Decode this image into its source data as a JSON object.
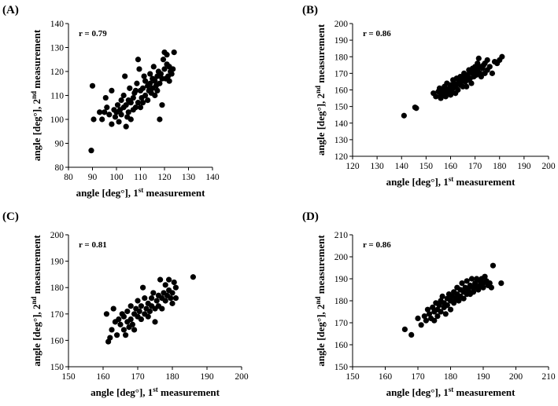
{
  "chart_data": [
    {
      "type": "scatter",
      "panel_label": "(A)",
      "annotation": "r = 0.79",
      "xlabel": {
        "pre": "angle [deg°], 1",
        "sup": "st",
        "post": " measurement"
      },
      "ylabel": {
        "pre": "angle [deg°], 2",
        "sup": "nd",
        "post": " measurement"
      },
      "xlim": [
        80,
        140
      ],
      "ylim": [
        80,
        140
      ],
      "xticks": [
        80,
        90,
        100,
        110,
        120,
        130,
        140
      ],
      "yticks": [
        80,
        90,
        100,
        110,
        120,
        130,
        140
      ],
      "points": [
        [
          89.5,
          87
        ],
        [
          90,
          114
        ],
        [
          90.5,
          100
        ],
        [
          93,
          103
        ],
        [
          94,
          100
        ],
        [
          95,
          103
        ],
        [
          95.5,
          109
        ],
        [
          96,
          105
        ],
        [
          97,
          102
        ],
        [
          98,
          112
        ],
        [
          98,
          98
        ],
        [
          99,
          104
        ],
        [
          99.5,
          101
        ],
        [
          100,
          103
        ],
        [
          100.5,
          106
        ],
        [
          101,
          99
        ],
        [
          101.5,
          104
        ],
        [
          102,
          108
        ],
        [
          102,
          102
        ],
        [
          103,
          105
        ],
        [
          103,
          110
        ],
        [
          103.5,
          118
        ],
        [
          104,
          97
        ],
        [
          104,
          106
        ],
        [
          104.5,
          101
        ],
        [
          105,
          108
        ],
        [
          105,
          103
        ],
        [
          105.5,
          113
        ],
        [
          106,
          107
        ],
        [
          106,
          100
        ],
        [
          107,
          104
        ],
        [
          107,
          109
        ],
        [
          107.5,
          111
        ],
        [
          108,
          105
        ],
        [
          108,
          112
        ],
        [
          108.5,
          115
        ],
        [
          109,
          125
        ],
        [
          109,
          107
        ],
        [
          109.5,
          121
        ],
        [
          110,
          112
        ],
        [
          110,
          105
        ],
        [
          110.5,
          109
        ],
        [
          111,
          113
        ],
        [
          111,
          107
        ],
        [
          111.5,
          118
        ],
        [
          112,
          116
        ],
        [
          112,
          110
        ],
        [
          113,
          114
        ],
        [
          113,
          108
        ],
        [
          113.5,
          112
        ],
        [
          114,
          115
        ],
        [
          114,
          119
        ],
        [
          114.5,
          111
        ],
        [
          115,
          113
        ],
        [
          115,
          117
        ],
        [
          115.5,
          122
        ],
        [
          116,
          116
        ],
        [
          116,
          110
        ],
        [
          116.5,
          114
        ],
        [
          117,
          118
        ],
        [
          117,
          112
        ],
        [
          117.5,
          120
        ],
        [
          118,
          115
        ],
        [
          118,
          100
        ],
        [
          118.5,
          119
        ],
        [
          119,
          117
        ],
        [
          119,
          106
        ],
        [
          119.5,
          125
        ],
        [
          120,
          128
        ],
        [
          120,
          121
        ],
        [
          120.5,
          117
        ],
        [
          121,
          123
        ],
        [
          121,
          127
        ],
        [
          121.5,
          118
        ],
        [
          122,
          116
        ],
        [
          122,
          122
        ],
        [
          122.5,
          120
        ],
        [
          123,
          119
        ],
        [
          123.5,
          121
        ],
        [
          124,
          128
        ]
      ]
    },
    {
      "type": "scatter",
      "panel_label": "(B)",
      "annotation": "r = 0.86",
      "xlabel": {
        "pre": "angle [deg°], 1",
        "sup": "st",
        "post": " measurement"
      },
      "ylabel": {
        "pre": "angle [deg°], 2",
        "sup": "nd",
        "post": " measurement"
      },
      "xlim": [
        120,
        200
      ],
      "ylim": [
        120,
        200
      ],
      "xticks": [
        120,
        130,
        140,
        150,
        160,
        170,
        180,
        190,
        200
      ],
      "yticks": [
        120,
        130,
        140,
        150,
        160,
        170,
        180,
        190,
        200
      ],
      "points": [
        [
          141,
          144.5
        ],
        [
          145.5,
          149.5
        ],
        [
          146,
          149
        ],
        [
          153,
          158
        ],
        [
          154,
          156
        ],
        [
          155,
          159
        ],
        [
          155.5,
          161
        ],
        [
          156,
          157
        ],
        [
          156,
          155
        ],
        [
          156.5,
          160
        ],
        [
          157,
          158
        ],
        [
          157.5,
          162
        ],
        [
          158,
          156
        ],
        [
          158,
          160
        ],
        [
          158.5,
          164
        ],
        [
          159,
          158
        ],
        [
          159.5,
          161
        ],
        [
          160,
          163
        ],
        [
          160,
          157
        ],
        [
          160.5,
          159
        ],
        [
          161,
          166
        ],
        [
          161,
          161
        ],
        [
          161.5,
          164
        ],
        [
          162,
          162
        ],
        [
          162,
          158
        ],
        [
          162.5,
          167
        ],
        [
          163,
          164
        ],
        [
          163,
          160
        ],
        [
          163.5,
          166
        ],
        [
          164,
          163
        ],
        [
          164,
          168
        ],
        [
          164.5,
          165
        ],
        [
          165,
          162
        ],
        [
          165,
          167
        ],
        [
          165.5,
          170
        ],
        [
          166,
          165
        ],
        [
          166,
          168
        ],
        [
          166.5,
          162
        ],
        [
          167,
          169
        ],
        [
          167,
          166
        ],
        [
          167.5,
          172
        ],
        [
          168,
          167
        ],
        [
          168,
          171
        ],
        [
          168.5,
          164
        ],
        [
          169,
          170
        ],
        [
          169,
          173
        ],
        [
          169.5,
          168
        ],
        [
          170,
          171
        ],
        [
          170,
          174
        ],
        [
          170.5,
          169
        ],
        [
          171,
          172
        ],
        [
          171,
          176
        ],
        [
          171.5,
          179
        ],
        [
          172,
          170
        ],
        [
          172,
          174
        ],
        [
          172.5,
          168
        ],
        [
          173,
          173
        ],
        [
          173.5,
          175
        ],
        [
          174,
          176
        ],
        [
          174,
          170
        ],
        [
          175,
          178
        ],
        [
          175,
          172
        ],
        [
          176,
          174
        ],
        [
          177,
          170
        ],
        [
          178,
          177
        ],
        [
          179,
          176
        ],
        [
          180,
          178
        ],
        [
          181,
          180
        ]
      ]
    },
    {
      "type": "scatter",
      "panel_label": "(C)",
      "annotation": "r = 0.81",
      "xlabel": {
        "pre": "angle [deg°], 1",
        "sup": "st",
        "post": " measurement"
      },
      "ylabel": {
        "pre": "angle [deg°], 2",
        "sup": "nd",
        "post": " measurement"
      },
      "xlim": [
        150,
        200
      ],
      "ylim": [
        150,
        200
      ],
      "xticks": [
        150,
        160,
        170,
        180,
        190,
        200
      ],
      "yticks": [
        150,
        160,
        170,
        180,
        190,
        200
      ],
      "points": [
        [
          161,
          170
        ],
        [
          161.5,
          159.5
        ],
        [
          162,
          161
        ],
        [
          162.5,
          164
        ],
        [
          163,
          172
        ],
        [
          163.5,
          167
        ],
        [
          164,
          162
        ],
        [
          164.5,
          168
        ],
        [
          165,
          166
        ],
        [
          165.5,
          170
        ],
        [
          166,
          164
        ],
        [
          166,
          169
        ],
        [
          166.5,
          162
        ],
        [
          167,
          167
        ],
        [
          167,
          171
        ],
        [
          167.5,
          165
        ],
        [
          168,
          168
        ],
        [
          168,
          173
        ],
        [
          168.5,
          166
        ],
        [
          169,
          170
        ],
        [
          169,
          164
        ],
        [
          169.5,
          172
        ],
        [
          170,
          169
        ],
        [
          170,
          175
        ],
        [
          170.5,
          171
        ],
        [
          171,
          168
        ],
        [
          171,
          173
        ],
        [
          171.5,
          180
        ],
        [
          172,
          170
        ],
        [
          172,
          176
        ],
        [
          172.5,
          172
        ],
        [
          173,
          174
        ],
        [
          173,
          169
        ],
        [
          173.5,
          171
        ],
        [
          174,
          176
        ],
        [
          174,
          173
        ],
        [
          174.5,
          178
        ],
        [
          175,
          172
        ],
        [
          175,
          167
        ],
        [
          175.5,
          175
        ],
        [
          176,
          177
        ],
        [
          176,
          173
        ],
        [
          176.5,
          183
        ],
        [
          177,
          176
        ],
        [
          177,
          172
        ],
        [
          177.5,
          178
        ],
        [
          178,
          175
        ],
        [
          178,
          181
        ],
        [
          178.5,
          177
        ],
        [
          179,
          179
        ],
        [
          179,
          183
        ],
        [
          179.5,
          176
        ],
        [
          180,
          178
        ],
        [
          180,
          174
        ],
        [
          180.5,
          182
        ],
        [
          181,
          180
        ],
        [
          181,
          176
        ],
        [
          186,
          184
        ]
      ]
    },
    {
      "type": "scatter",
      "panel_label": "(D)",
      "annotation": "r = 0.86",
      "xlabel": {
        "pre": "angle [deg°], 1",
        "sup": "st",
        "post": " measurement"
      },
      "ylabel": {
        "pre": "angle [deg°], 2",
        "sup": "nd",
        "post": " measurement"
      },
      "xlim": [
        150,
        210
      ],
      "ylim": [
        150,
        210
      ],
      "xticks": [
        150,
        160,
        170,
        180,
        190,
        200,
        210
      ],
      "yticks": [
        150,
        160,
        170,
        180,
        190,
        200,
        210
      ],
      "points": [
        [
          166,
          167
        ],
        [
          168,
          164.5
        ],
        [
          170,
          172
        ],
        [
          171,
          169
        ],
        [
          172,
          173
        ],
        [
          172.5,
          171
        ],
        [
          173,
          176
        ],
        [
          173.5,
          174
        ],
        [
          174,
          172
        ],
        [
          174.5,
          177
        ],
        [
          175,
          175
        ],
        [
          175,
          171
        ],
        [
          175.5,
          179
        ],
        [
          176,
          176
        ],
        [
          176,
          173
        ],
        [
          176.5,
          178
        ],
        [
          177,
          180
        ],
        [
          177,
          175
        ],
        [
          177.5,
          182
        ],
        [
          178,
          177
        ],
        [
          178,
          179
        ],
        [
          178.5,
          174
        ],
        [
          179,
          181
        ],
        [
          179,
          178
        ],
        [
          179.5,
          183
        ],
        [
          180,
          180
        ],
        [
          180,
          176
        ],
        [
          180.5,
          182
        ],
        [
          181,
          184
        ],
        [
          181,
          179
        ],
        [
          181.5,
          181
        ],
        [
          182,
          183
        ],
        [
          182,
          186
        ],
        [
          182.5,
          180
        ],
        [
          183,
          185
        ],
        [
          183,
          182
        ],
        [
          183.5,
          188
        ],
        [
          184,
          184
        ],
        [
          184,
          181
        ],
        [
          184.5,
          186
        ],
        [
          185,
          189
        ],
        [
          185,
          183
        ],
        [
          185.5,
          185
        ],
        [
          186,
          187
        ],
        [
          186,
          183
        ],
        [
          186.5,
          190
        ],
        [
          187,
          186
        ],
        [
          187,
          184
        ],
        [
          187.5,
          188
        ],
        [
          188,
          190
        ],
        [
          188,
          186
        ],
        [
          188.5,
          185
        ],
        [
          189,
          189
        ],
        [
          189,
          187
        ],
        [
          189.5,
          190
        ],
        [
          190,
          188
        ],
        [
          190,
          186
        ],
        [
          190.5,
          191
        ],
        [
          191,
          189
        ],
        [
          191.5,
          187
        ],
        [
          192,
          188
        ],
        [
          192.5,
          186
        ],
        [
          193,
          196
        ],
        [
          195.5,
          188
        ]
      ]
    }
  ]
}
